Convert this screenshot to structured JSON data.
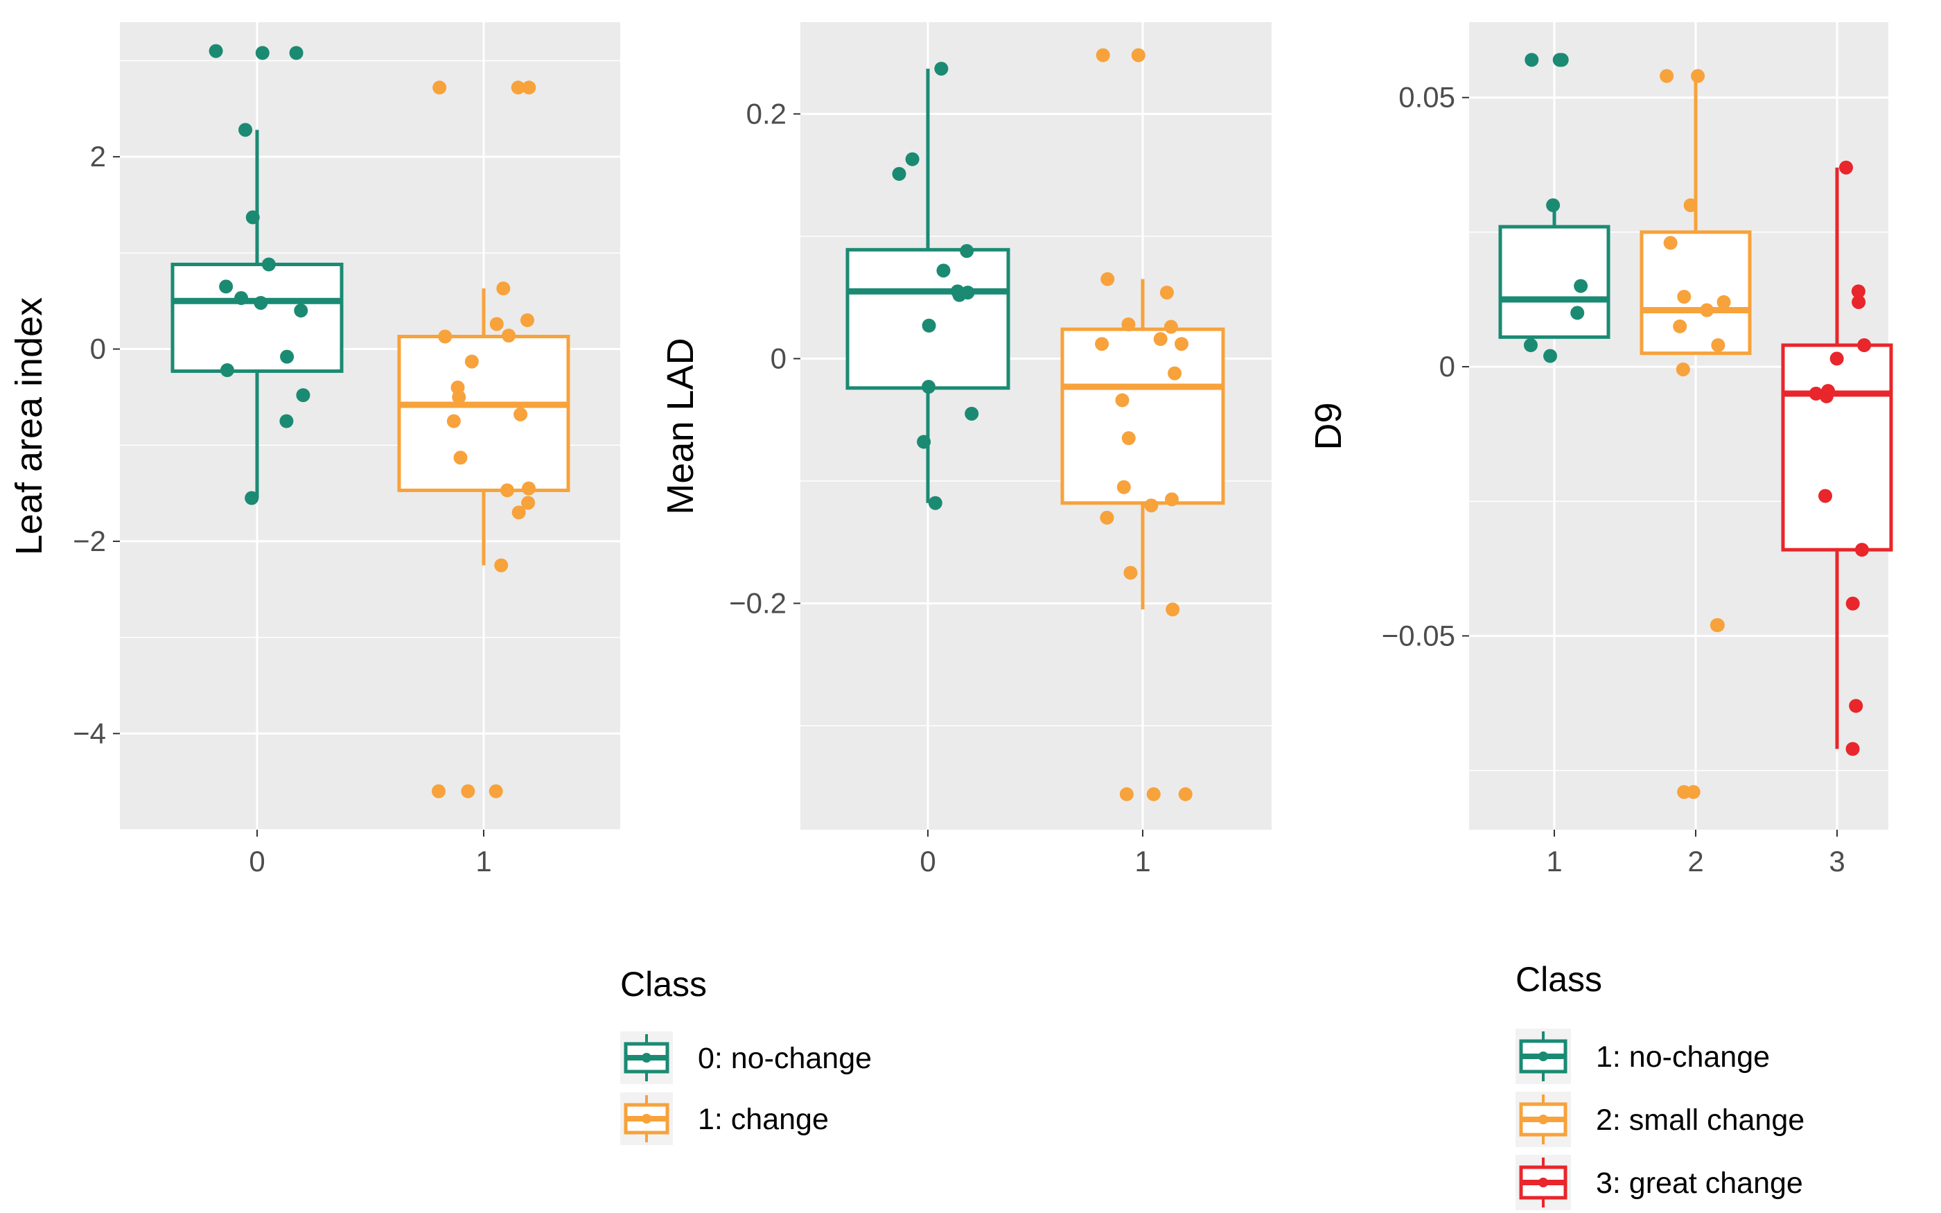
{
  "chart_data": [
    {
      "type": "box",
      "ylabel": "Leaf area index",
      "xlabel": "",
      "categories": [
        "0",
        "1"
      ],
      "ylim": [
        -5.0,
        3.4
      ],
      "yticks": [
        2,
        0,
        -2,
        -4
      ],
      "ytick_labels": [
        "2",
        "0",
        "−2",
        "−4"
      ],
      "grid": true,
      "series": [
        {
          "name": "0: no-change",
          "color": "#1b8a73",
          "box": {
            "q1": -0.23,
            "median": 0.5,
            "q3": 0.88,
            "whisker_low": -1.55,
            "whisker_high": 2.28
          },
          "points": [
            3.08,
            3.1,
            3.08,
            2.28,
            1.37,
            0.88,
            0.65,
            0.53,
            0.48,
            0.4,
            -0.08,
            -0.22,
            -0.48,
            -0.75,
            -1.55
          ]
        },
        {
          "name": "1: change",
          "color": "#f7a23b",
          "box": {
            "q1": -1.47,
            "median": -0.58,
            "q3": 0.13,
            "whisker_low": -2.25,
            "whisker_high": 0.63
          },
          "points": [
            2.72,
            2.72,
            2.72,
            0.63,
            0.3,
            0.26,
            0.13,
            0.14,
            -0.13,
            -0.4,
            -0.5,
            -0.68,
            -0.75,
            -1.13,
            -1.47,
            -1.45,
            -1.6,
            -1.7,
            -2.25,
            -4.6,
            -4.6,
            -4.6
          ]
        }
      ]
    },
    {
      "type": "box",
      "ylabel": "Mean LAD",
      "xlabel": "",
      "categories": [
        "0",
        "1"
      ],
      "ylim": [
        -0.385,
        0.275
      ],
      "yticks": [
        0.2,
        0,
        -0.2
      ],
      "ytick_labels": [
        "0.2",
        "0",
        "−0.2"
      ],
      "grid": true,
      "series": [
        {
          "name": "0: no-change",
          "color": "#1b8a73",
          "box": {
            "q1": -0.024,
            "median": 0.055,
            "q3": 0.089,
            "whisker_low": -0.118,
            "whisker_high": 0.237
          },
          "points": [
            0.237,
            0.163,
            0.151,
            0.088,
            0.072,
            0.055,
            0.052,
            0.054,
            0.027,
            -0.023,
            -0.045,
            -0.068,
            -0.118
          ]
        },
        {
          "name": "1: change",
          "color": "#f7a23b",
          "box": {
            "q1": -0.118,
            "median": -0.023,
            "q3": 0.024,
            "whisker_low": -0.205,
            "whisker_high": 0.065
          },
          "points": [
            0.248,
            0.248,
            0.065,
            0.054,
            0.028,
            0.026,
            0.016,
            0.012,
            0.012,
            -0.012,
            -0.034,
            -0.065,
            -0.105,
            -0.115,
            -0.12,
            -0.13,
            -0.175,
            -0.205,
            -0.356,
            -0.356,
            -0.356
          ]
        }
      ]
    },
    {
      "type": "box",
      "ylabel": "D9",
      "xlabel": "",
      "categories": [
        "1",
        "2",
        "3"
      ],
      "ylim": [
        -0.086,
        0.064
      ],
      "yticks": [
        0.05,
        0,
        -0.05
      ],
      "ytick_labels": [
        "0.05",
        "0",
        "−0.05"
      ],
      "grid": true,
      "series": [
        {
          "name": "1: no-change",
          "color": "#1b8a73",
          "box": {
            "q1": 0.0055,
            "median": 0.0125,
            "q3": 0.026,
            "whisker_low": 0.0055,
            "whisker_high": 0.03
          },
          "points": [
            0.057,
            0.057,
            0.057,
            0.03,
            0.015,
            0.01,
            0.004,
            0.002
          ]
        },
        {
          "name": "2: small change",
          "color": "#f7a23b",
          "box": {
            "q1": 0.0025,
            "median": 0.0105,
            "q3": 0.025,
            "whisker_low": 0.0025,
            "whisker_high": 0.054
          },
          "points": [
            0.054,
            0.054,
            0.03,
            0.023,
            0.013,
            0.012,
            0.0105,
            0.0075,
            0.004,
            -0.0005,
            -0.048,
            -0.048,
            -0.079,
            -0.079
          ]
        },
        {
          "name": "3: great change",
          "color": "#e8262b",
          "box": {
            "q1": -0.034,
            "median": -0.005,
            "q3": 0.004,
            "whisker_low": -0.071,
            "whisker_high": 0.037
          },
          "points": [
            0.037,
            0.014,
            0.012,
            0.004,
            0.0015,
            -0.0045,
            -0.005,
            -0.0055,
            -0.024,
            -0.034,
            -0.044,
            -0.063,
            -0.071
          ]
        }
      ]
    }
  ],
  "legends": [
    {
      "title": "Class",
      "items": [
        {
          "label": "0: no-change",
          "color": "#1b8a73"
        },
        {
          "label": "1: change",
          "color": "#f7a23b"
        }
      ]
    },
    {
      "title": "Class",
      "items": [
        {
          "label": "1: no-change",
          "color": "#1b8a73"
        },
        {
          "label": "2: small change",
          "color": "#f7a23b"
        },
        {
          "label": "3: great change",
          "color": "#e8262b"
        }
      ]
    }
  ]
}
